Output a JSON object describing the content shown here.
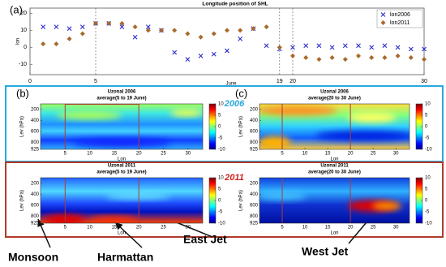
{
  "chart_data": [
    {
      "type": "scatter",
      "label": "(a)",
      "title": "Longitude position of SHL",
      "xlabel": "June",
      "ylabel": "lon",
      "x": [
        1,
        2,
        3,
        4,
        5,
        6,
        7,
        8,
        9,
        10,
        11,
        12,
        13,
        14,
        15,
        16,
        17,
        18,
        19,
        20,
        21,
        22,
        23,
        24,
        25,
        26,
        27,
        28,
        29,
        30
      ],
      "series": [
        {
          "name": "lon2006",
          "color": "#2a2ad0",
          "marker": "x",
          "values": [
            12,
            12,
            11,
            12,
            14,
            14,
            12,
            6,
            12,
            10,
            -3,
            -7,
            -5,
            -4,
            -2,
            5,
            11,
            1,
            -1,
            0,
            1,
            1,
            0,
            1,
            1,
            0,
            1,
            0,
            -1,
            -1
          ]
        },
        {
          "name": "lon2011",
          "color": "#a86a2c",
          "marker": "diamond",
          "values": [
            2,
            2,
            5,
            8,
            14,
            14,
            14,
            12,
            10,
            10,
            10,
            8,
            6,
            8,
            10,
            10,
            11,
            12,
            0,
            -5,
            -6,
            -7,
            -6,
            -7,
            -5,
            -6,
            -6,
            -5,
            -6,
            -7
          ]
        }
      ],
      "xlim": [
        0,
        30
      ],
      "xticks": [
        0,
        5,
        19,
        20,
        30
      ],
      "ylim": [
        -16,
        23
      ],
      "yticks": [
        -10,
        0,
        10,
        20
      ],
      "legend": "upper right"
    },
    {
      "type": "heatmap",
      "label": "(b)",
      "title": "Uzonal 2006",
      "subtitle": "average(5 to 19 June)",
      "xlabel": "Lon",
      "ylabel": "Lev (hPa)",
      "xlim": [
        0,
        33
      ],
      "xticks": [
        5,
        10,
        15,
        20,
        25,
        30
      ],
      "ylim": [
        925,
        100
      ],
      "yticks": [
        200,
        400,
        600,
        800,
        925
      ],
      "clim": [
        -10,
        10
      ],
      "cticks": [
        -10,
        -5,
        0,
        5,
        10
      ],
      "highlight": [
        5,
        20
      ],
      "highlight_color": "#b03a3a"
    },
    {
      "type": "heatmap",
      "label": "(c)",
      "title": "Uzonal 2006",
      "subtitle": "average(20 to 30 June)",
      "xlabel": "Lon",
      "ylabel": "Lev (hPa)",
      "xlim": [
        0,
        33
      ],
      "xticks": [
        5,
        10,
        15,
        20,
        25,
        30
      ],
      "ylim": [
        925,
        100
      ],
      "yticks": [
        200,
        400,
        600,
        800,
        925
      ],
      "clim": [
        -10,
        10
      ],
      "cticks": [
        -10,
        -5,
        0,
        5,
        10
      ],
      "highlight": [
        5,
        20
      ],
      "highlight_color": "#b03a3a"
    },
    {
      "type": "heatmap",
      "title": "Uzonal 2011",
      "subtitle": "average(5 to 19 June)",
      "xlabel": "Lon",
      "ylabel": "Lev (hPa)",
      "xlim": [
        0,
        33
      ],
      "xticks": [
        5,
        10,
        15,
        20,
        25,
        30
      ],
      "ylim": [
        925,
        100
      ],
      "yticks": [
        200,
        400,
        600,
        800,
        925
      ],
      "clim": [
        -10,
        10
      ],
      "cticks": [
        -10,
        -5,
        0,
        5,
        10
      ],
      "highlight": [
        5,
        20
      ],
      "highlight_color": "#b03a3a"
    },
    {
      "type": "heatmap",
      "title": "Uzonal 2011",
      "subtitle": "average(20 to 30 June)",
      "xlabel": "Lon",
      "ylabel": "Lev (hPa)",
      "xlim": [
        0,
        33
      ],
      "xticks": [
        5,
        10,
        15,
        20,
        25,
        30
      ],
      "ylim": [
        925,
        100
      ],
      "yticks": [
        200,
        400,
        600,
        800,
        925
      ],
      "clim": [
        -10,
        10
      ],
      "cticks": [
        -10,
        -5,
        0,
        5,
        10
      ],
      "highlight": [
        5,
        20
      ],
      "highlight_color": "#b03a3a"
    }
  ],
  "groups": [
    {
      "label": "2006",
      "color": "#29a8df"
    },
    {
      "label": "2011",
      "color": "#d0211c"
    }
  ],
  "annotations": [
    "Monsoon",
    "Harmattan",
    "East Jet",
    "West Jet"
  ]
}
